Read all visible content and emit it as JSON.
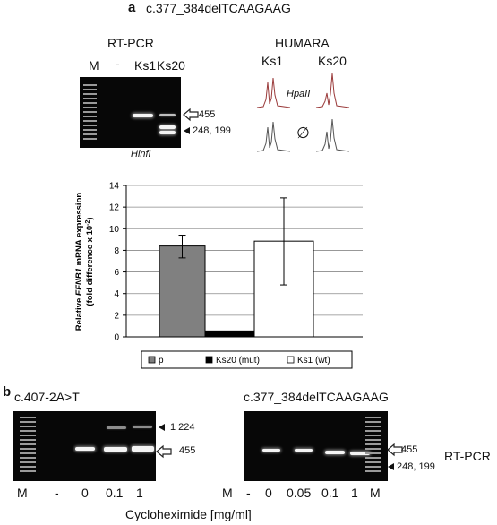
{
  "panel_a": {
    "letter": "a",
    "mutation": "c.377_384delTCAAGAAG",
    "rtpcr": {
      "title": "RT-PCR",
      "lanes": [
        "M",
        "-",
        "Ks1",
        "Ks20"
      ],
      "enzyme": "HinfI",
      "size_full": "455",
      "size_cut": "248, 199"
    },
    "humara": {
      "title": "HUMARA",
      "col1": "Ks1",
      "col2": "Ks20",
      "enzyme": "HpaII",
      "empty_symbol": "∅"
    }
  },
  "chart_data": {
    "type": "bar",
    "categories": [
      "p",
      "Ks20 (mut)",
      "Ks1 (wt)"
    ],
    "values": [
      8.4,
      0.55,
      8.85
    ],
    "error_low": [
      7.3,
      null,
      4.8
    ],
    "error_high": [
      9.4,
      null,
      12.85
    ],
    "colors": [
      "#808080",
      "#000000",
      "#ffffff"
    ],
    "ylabel_line1": "Relative EFNB1 mRNA expression",
    "ylabel_line2": "(fold difference x 10",
    "ylabel_sup": "-2",
    "ylabel_close": ")",
    "ylim": [
      0,
      14
    ],
    "yticks": [
      "0",
      "2",
      "4",
      "6",
      "8",
      "10",
      "12",
      "14"
    ],
    "grid": true,
    "legend_position": "bottom"
  },
  "panel_b": {
    "letter": "b",
    "left": {
      "mutation": "c.407-2A>T",
      "lanes": [
        "M",
        "-",
        "0",
        "0.1",
        "1"
      ],
      "size_upper": "1 224",
      "size_main": "455"
    },
    "right": {
      "mutation": "c.377_384delTCAAGAAG",
      "lanes": [
        "M",
        "-",
        "0",
        "0.05",
        "0.1",
        "1",
        "M"
      ],
      "size_main": "455",
      "size_cut": "248, 199",
      "assay": "RT-PCR"
    },
    "xlabel": "Cycloheximide [mg/ml]"
  }
}
